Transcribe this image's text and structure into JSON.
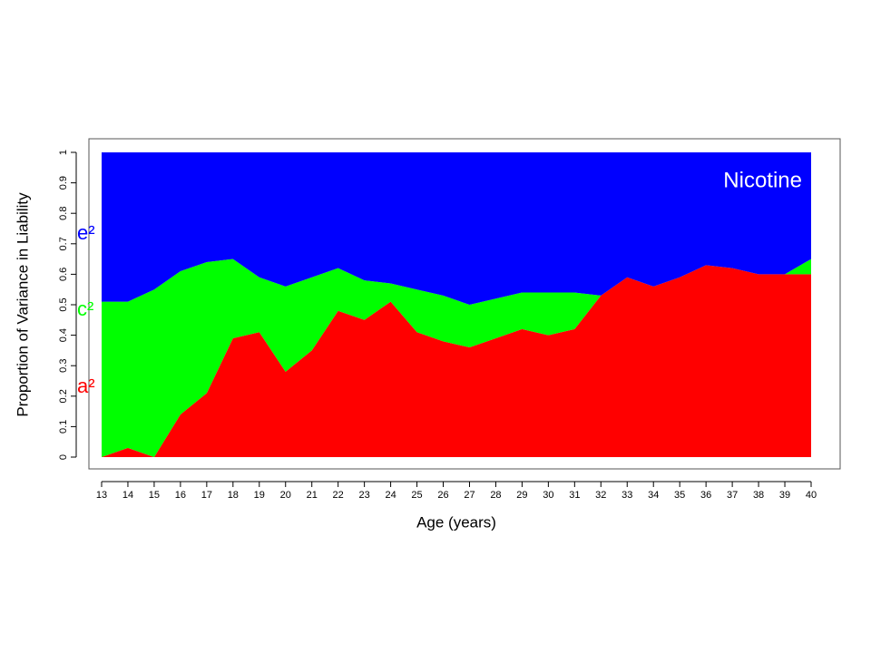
{
  "chart_data": {
    "type": "stacked-area",
    "annotation": "Nicotine",
    "x_label": "Age (years)",
    "y_label": "Proportion of Variance in Liability",
    "x": [
      13,
      14,
      15,
      16,
      17,
      18,
      19,
      20,
      21,
      22,
      23,
      24,
      25,
      26,
      27,
      28,
      29,
      30,
      31,
      32,
      33,
      34,
      35,
      36,
      37,
      38,
      39,
      40
    ],
    "series": [
      {
        "name": "a²",
        "color": "#ff0000",
        "values": [
          0,
          0.03,
          0,
          0.14,
          0.21,
          0.39,
          0.41,
          0.28,
          0.35,
          0.48,
          0.45,
          0.51,
          0.41,
          0.38,
          0.36,
          0.39,
          0.42,
          0.4,
          0.42,
          0.53,
          0.59,
          0.56,
          0.59,
          0.63,
          0.62,
          0.6,
          0.6,
          0.6
        ]
      },
      {
        "name": "c²",
        "color": "#00ff00",
        "values": [
          0.51,
          0.48,
          0.55,
          0.47,
          0.43,
          0.26,
          0.18,
          0.28,
          0.24,
          0.14,
          0.13,
          0.06,
          0.14,
          0.15,
          0.14,
          0.13,
          0.12,
          0.14,
          0.12,
          0,
          0,
          0,
          0,
          0,
          0,
          0,
          0,
          0.05
        ]
      },
      {
        "name": "e²",
        "color": "#0000ff",
        "values": [
          0.49,
          0.49,
          0.45,
          0.39,
          0.36,
          0.35,
          0.41,
          0.44,
          0.41,
          0.38,
          0.42,
          0.43,
          0.45,
          0.47,
          0.5,
          0.48,
          0.46,
          0.46,
          0.46,
          0.47,
          0.41,
          0.44,
          0.41,
          0.37,
          0.38,
          0.4,
          0.4,
          0.35
        ]
      }
    ],
    "xlim": [
      13,
      40
    ],
    "xticks": [
      13,
      14,
      15,
      16,
      17,
      18,
      19,
      20,
      21,
      22,
      23,
      24,
      25,
      26,
      27,
      28,
      29,
      30,
      31,
      32,
      33,
      34,
      35,
      36,
      37,
      38,
      39,
      40
    ],
    "ylim": [
      0,
      1
    ],
    "yticks": [
      0,
      0.1,
      0.2,
      0.3,
      0.4,
      0.5,
      0.6,
      0.7,
      0.8,
      0.9,
      1
    ]
  }
}
